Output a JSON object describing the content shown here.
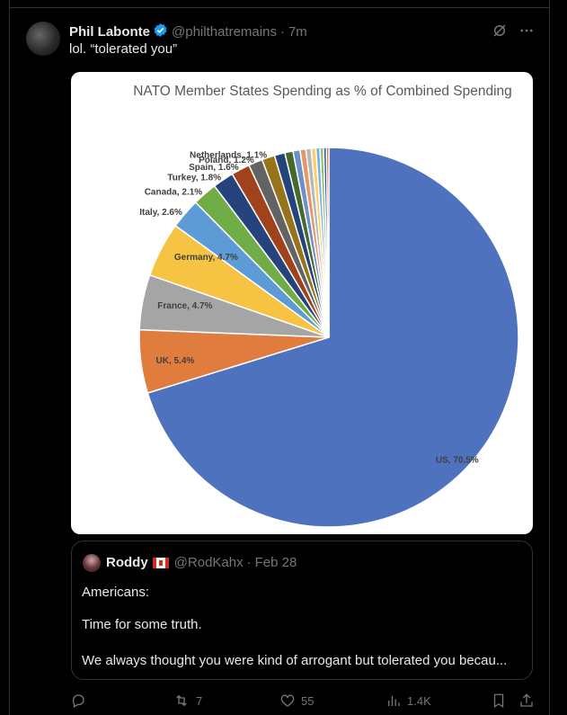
{
  "tweet": {
    "author_name": "Phil Labonte",
    "handle": "@philthatremains",
    "time": "7m",
    "text": "lol. “tolerated you”"
  },
  "chart_data": {
    "type": "pie",
    "title": "NATO Member States Spending as % of Combined Spending",
    "slices": [
      {
        "label": "US, 70.5%",
        "value": 70.5,
        "color": "#4f72be"
      },
      {
        "label": "UK, 5.4%",
        "value": 5.4,
        "color": "#e07c3e"
      },
      {
        "label": "France, 4.7%",
        "value": 4.7,
        "color": "#a5a5a5"
      },
      {
        "label": "Germany, 4.7%",
        "value": 4.7,
        "color": "#f7c342"
      },
      {
        "label": "Italy, 2.6%",
        "value": 2.6,
        "color": "#5c9bd5"
      },
      {
        "label": "Canada, 2.1%",
        "value": 2.1,
        "color": "#71ad47"
      },
      {
        "label": "Turkey, 1.8%",
        "value": 1.8,
        "color": "#27437c"
      },
      {
        "label": "Spain, 1.6%",
        "value": 1.6,
        "color": "#a0431d"
      },
      {
        "label": "Poland, 1.2%",
        "value": 1.2,
        "color": "#636363"
      },
      {
        "label": "Netherlands, 1.1%",
        "value": 1.1,
        "color": "#97731c"
      },
      {
        "label": "",
        "value": 0.9,
        "color": "#254478"
      },
      {
        "label": "",
        "value": 0.7,
        "color": "#466a2c"
      },
      {
        "label": "",
        "value": 0.6,
        "color": "#6d8fca"
      },
      {
        "label": "",
        "value": 0.5,
        "color": "#e59766"
      },
      {
        "label": "",
        "value": 0.45,
        "color": "#b7b7b7"
      },
      {
        "label": "",
        "value": 0.4,
        "color": "#f9d06b"
      },
      {
        "label": "",
        "value": 0.35,
        "color": "#7eb0dd"
      },
      {
        "label": "",
        "value": 0.3,
        "color": "#8fc16b"
      },
      {
        "label": "",
        "value": 0.25,
        "color": "#31569c"
      },
      {
        "label": "",
        "value": 0.2,
        "color": "#c65a28"
      }
    ]
  },
  "quote": {
    "author_name": "Roddy",
    "handle": "@RodKahx",
    "date": "Feb 28",
    "line1": "Americans:",
    "line2": "Time for some truth.",
    "line3": "We always thought you were kind of arrogant but tolerated you becau..."
  },
  "actions": {
    "reposts": "7",
    "likes": "55",
    "views": "1.4K"
  },
  "colors": {
    "accent": "#1d9bf0",
    "muted": "#71767b",
    "border": "#2f3336"
  }
}
